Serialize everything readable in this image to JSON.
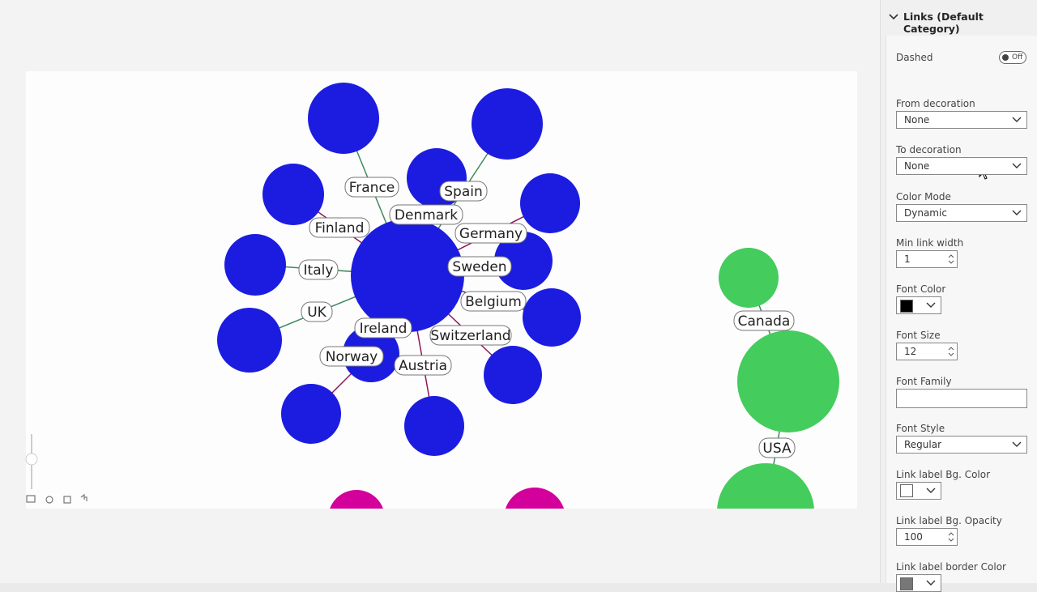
{
  "graph": {
    "link_labels": [
      "France",
      "Spain",
      "Denmark",
      "Finland",
      "Germany",
      "Italy",
      "Sweden",
      "Belgium",
      "UK",
      "Ireland",
      "Switzerland",
      "Norway",
      "Austria",
      "Canada",
      "USA"
    ]
  },
  "panel": {
    "section_title": "Links (Default Category)",
    "fields": [
      {
        "label": "Dashed",
        "value": "Off"
      },
      {
        "label": "From decoration",
        "value": "None"
      },
      {
        "label": "To decoration",
        "value": "None"
      },
      {
        "label": "Color Mode",
        "value": "Dynamic"
      },
      {
        "label": "Min link width",
        "value": "1"
      },
      {
        "label": "Font Color"
      },
      {
        "label": "Font Size",
        "value": "12"
      },
      {
        "label": "Font Family"
      },
      {
        "label": "Font Style",
        "value": "Regular"
      },
      {
        "label": "Link label Bg. Color"
      },
      {
        "label": "Link label Bg. Opacity",
        "value": "100"
      },
      {
        "label": "Link label border Color"
      }
    ]
  }
}
